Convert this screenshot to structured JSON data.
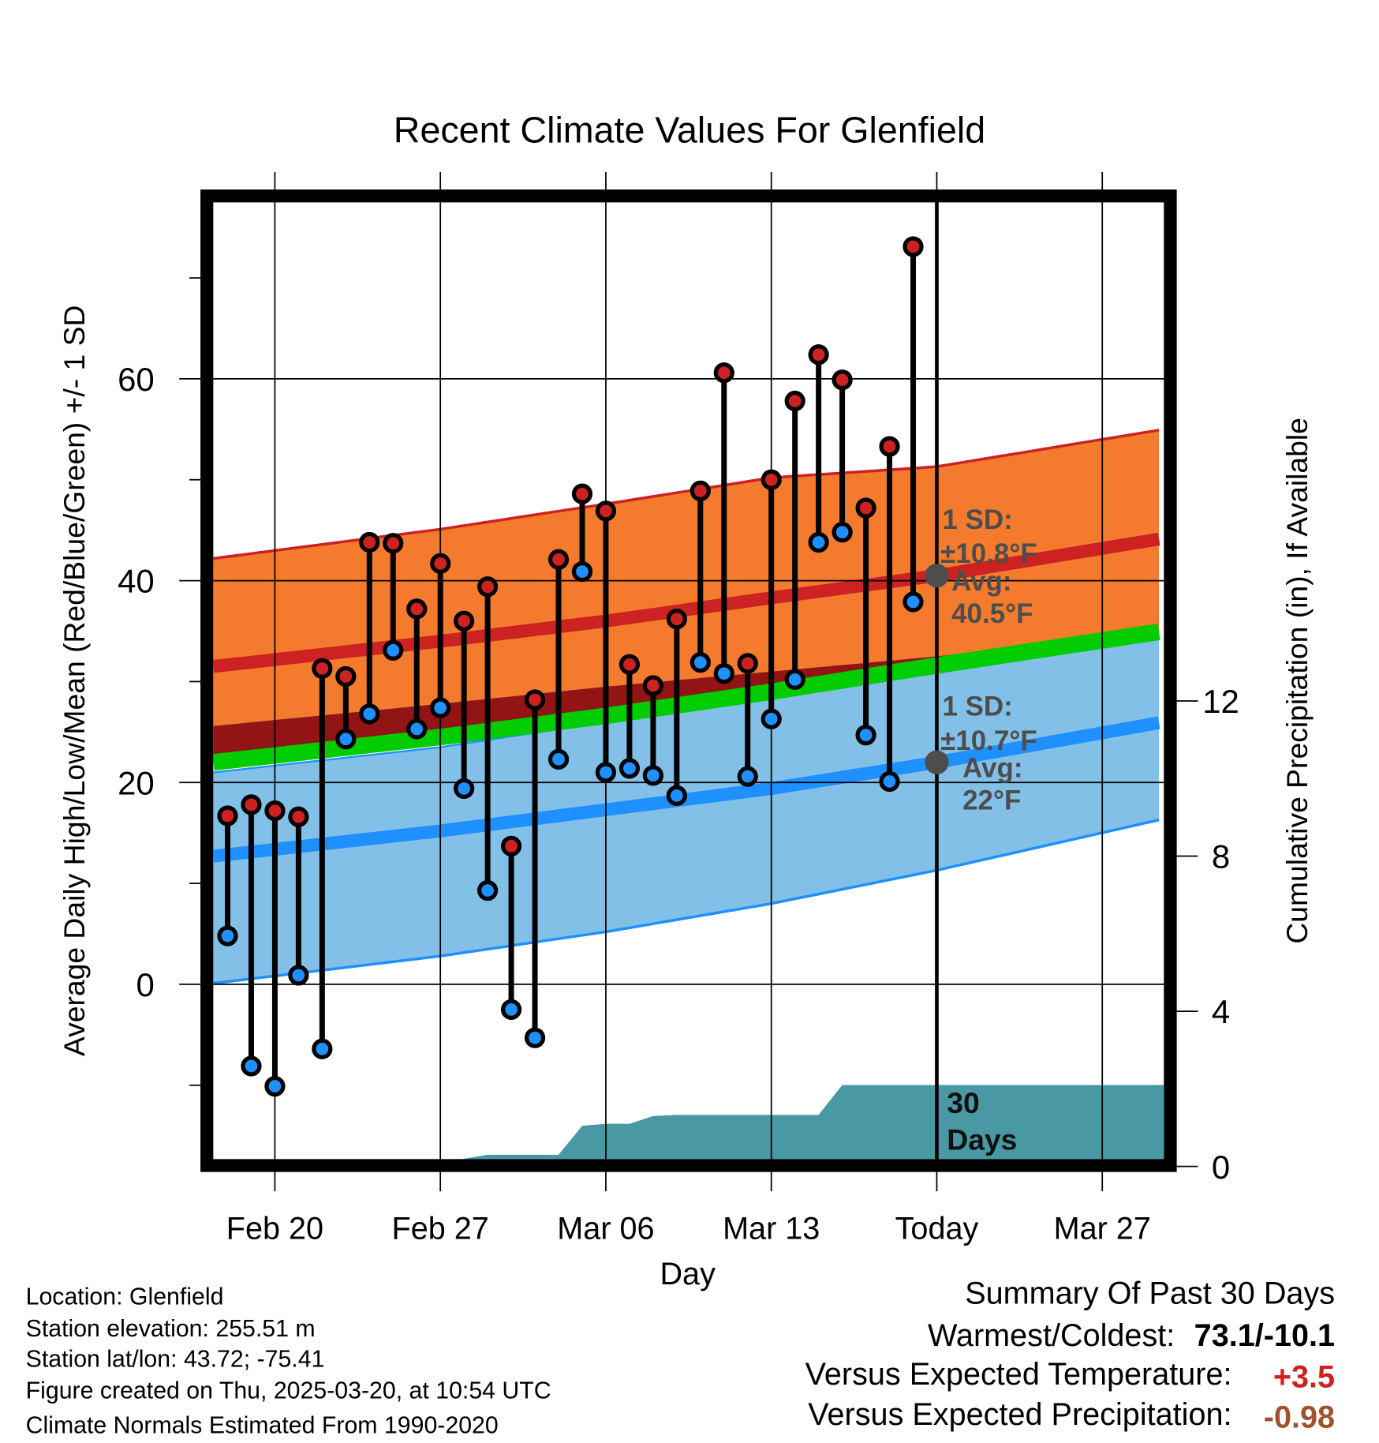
{
  "chart_data": {
    "type": "line",
    "title": "Recent Climate Values For Glenfield",
    "xlabel": "Day",
    "ylabel": "Average Daily High/Low/Mean (Red/Blue/Green) +/- 1 SD",
    "ylabel_right": "Cumulative Precipitation (in), If Available",
    "x_unit": "days relative to Feb 20",
    "xlim": [
      -2.6,
      37.6
    ],
    "ylim": [
      -17.3,
      77.5
    ],
    "ylim_right": [
      0,
      22.5
    ],
    "x_ticks": [
      {
        "day": 0,
        "label": "Feb 20"
      },
      {
        "day": 7,
        "label": "Feb 27"
      },
      {
        "day": 14,
        "label": "Mar 06"
      },
      {
        "day": 21,
        "label": "Mar 13"
      },
      {
        "day": 28,
        "label": "Today"
      },
      {
        "day": 35,
        "label": "Mar 27"
      }
    ],
    "y_ticks": [
      0,
      20,
      40,
      60
    ],
    "y_minor_ticks": [
      -10,
      10,
      30,
      50,
      70
    ],
    "y_ticks_right": [
      0,
      4,
      8,
      12
    ],
    "grid": true,
    "today_day": 28,
    "observed": {
      "days": [
        -2,
        -1,
        0,
        1,
        2,
        3,
        4,
        5,
        6,
        7,
        8,
        9,
        10,
        11,
        12,
        13,
        14,
        15,
        16,
        17,
        18,
        19,
        20,
        21,
        22,
        23,
        24,
        25,
        26,
        27
      ],
      "highs": [
        16.7,
        17.8,
        17.2,
        16.6,
        31.3,
        30.5,
        43.8,
        43.7,
        37.2,
        41.7,
        36.0,
        39.4,
        13.7,
        28.2,
        42.1,
        48.6,
        46.9,
        31.7,
        29.6,
        36.2,
        48.9,
        60.6,
        31.8,
        50.0,
        57.8,
        62.4,
        59.9,
        47.2,
        53.3,
        73.1
      ],
      "lows": [
        4.8,
        -8.1,
        -10.1,
        0.9,
        -6.4,
        24.3,
        26.8,
        33.1,
        25.3,
        27.4,
        19.4,
        9.3,
        -2.5,
        -5.3,
        22.3,
        40.9,
        21.0,
        21.4,
        20.7,
        18.7,
        31.9,
        30.8,
        20.6,
        26.3,
        30.2,
        43.8,
        44.8,
        24.7,
        20.1,
        37.9
      ]
    },
    "normals": {
      "days": [
        -2.6,
        7,
        14,
        21,
        28,
        37.6
      ],
      "high_upper": [
        42.2,
        45.1,
        47.6,
        50.2,
        51.3,
        55.0
      ],
      "high_mean": [
        31.5,
        34.0,
        36.0,
        38.3,
        40.5,
        44.2
      ],
      "high_lower": [
        25.6,
        27.8,
        29.5,
        31.0,
        32.5,
        35.0
      ],
      "mean": [
        22.0,
        24.5,
        26.6,
        29.0,
        31.6,
        35.0
      ],
      "low_upper": [
        21.0,
        23.5,
        26.0,
        28.5,
        31.0,
        34.3
      ],
      "low_mean": [
        12.7,
        15.2,
        17.3,
        19.4,
        22.0,
        26.0
      ],
      "low_lower": [
        0.1,
        2.8,
        5.2,
        8.0,
        11.3,
        16.4
      ]
    },
    "precip_cumulative": {
      "days": [
        -2.6,
        6.7,
        8,
        9,
        12,
        13,
        14,
        15,
        16,
        17,
        23,
        24,
        37.6
      ],
      "inches": [
        0,
        0,
        0.2,
        0.3,
        0.3,
        1.05,
        1.1,
        1.1,
        1.3,
        1.33,
        1.33,
        2.1,
        2.1
      ]
    },
    "annotations": {
      "high": {
        "sd": "1 SD:",
        "sd_value": "±10.8°F",
        "avg": "Avg:",
        "avg_value": "40.5°F",
        "avg_num": 40.5
      },
      "low": {
        "sd": "1 SD:",
        "sd_value": "±10.7°F",
        "avg": "Avg:",
        "avg_value": "22°F",
        "avg_num": 22
      },
      "precip": [
        "30",
        "Days"
      ]
    },
    "colors": {
      "high_band": "#f47a2e",
      "high_mean": "#cc2222",
      "overlap": "#931414",
      "mean": "#00cc00",
      "low_band": "#82c0e8",
      "low_mean": "#1e90ff",
      "precip": "#4899a3",
      "annotation": "#4d4d4d",
      "high_dot": "#cc2222",
      "low_dot": "#1e90ff"
    }
  },
  "footer": {
    "info": [
      "Location: Glenfield",
      "Station elevation: 255.51 m",
      "Station lat/lon: 43.72; -75.41",
      "Figure created on Thu, 2025-03-20, at 10:54 UTC",
      "Climate Normals Estimated From 1990-2020"
    ],
    "summary_title": "Summary Of Past 30 Days",
    "warmest_label": "Warmest/Coldest:",
    "warmest_value": "73.1/-10.1",
    "temp_label": "Versus Expected Temperature:",
    "temp_value": "+3.5",
    "precip_label": "Versus Expected Precipitation:",
    "precip_value": "-0.98",
    "temp_color": "#cc2222",
    "precip_color": "#a0522d"
  }
}
